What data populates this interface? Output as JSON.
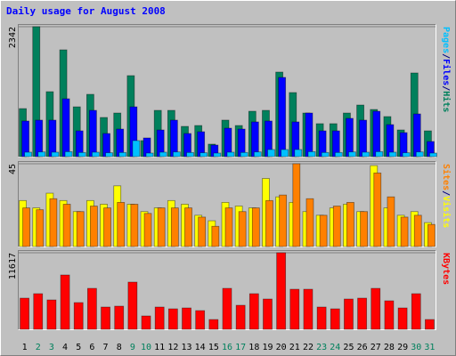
{
  "chart_data": [
    {
      "type": "bar",
      "title": "Daily usage for August 2008",
      "separator": "/",
      "ylim": [
        0,
        2342
      ],
      "yticks": [
        2342
      ],
      "series": [
        {
          "name": "Hits",
          "color": "#00805c",
          "values": [
            866,
            2342,
            1171,
            1925,
            898,
            1123,
            706,
            786,
            1460,
            289,
            834,
            834,
            545,
            561,
            225,
            658,
            561,
            818,
            834,
            1524,
            1155,
            786,
            594,
            594,
            786,
            930,
            850,
            722,
            481,
            1508,
            465
          ]
        },
        {
          "name": "Files",
          "color": "#0000ff",
          "values": [
            642,
            658,
            658,
            1043,
            465,
            834,
            417,
            497,
            898,
            337,
            481,
            658,
            417,
            449,
            209,
            513,
            497,
            626,
            642,
            1428,
            626,
            786,
            465,
            465,
            690,
            658,
            818,
            577,
            433,
            770,
            273
          ]
        },
        {
          "name": "Pages",
          "color": "#00c0ff",
          "values": [
            80,
            85,
            80,
            90,
            75,
            80,
            70,
            75,
            289,
            64,
            80,
            85,
            75,
            70,
            64,
            80,
            75,
            85,
            128,
            128,
            128,
            90,
            75,
            75,
            85,
            80,
            90,
            80,
            70,
            85,
            64
          ]
        }
      ]
    },
    {
      "type": "bar",
      "separator": "/",
      "ylim": [
        0,
        45
      ],
      "yticks": [
        45
      ],
      "series": [
        {
          "name": "Visits",
          "color": "#ffff00",
          "values": [
            25,
            21,
            29,
            25,
            19,
            25,
            23,
            33,
            23,
            19,
            21,
            25,
            23,
            17,
            14,
            24,
            22,
            21,
            37,
            27,
            24,
            19,
            17,
            21,
            23,
            19,
            44,
            21,
            17,
            19,
            13
          ]
        },
        {
          "name": "Sites",
          "color": "#ff8000",
          "values": [
            21,
            20,
            26,
            23,
            19,
            22,
            21,
            24,
            23,
            18,
            21,
            21,
            21,
            16,
            11,
            21,
            19,
            21,
            25,
            28,
            45,
            26,
            17,
            22,
            24,
            19,
            40,
            27,
            16,
            17,
            12
          ]
        }
      ]
    },
    {
      "type": "bar",
      "ylim": [
        0,
        11617
      ],
      "yticks": [
        11617
      ],
      "series": [
        {
          "name": "KBytes",
          "color": "#ff0000",
          "values": [
            4728,
            5404,
            4458,
            8241,
            4053,
            6214,
            3377,
            3512,
            7160,
            2026,
            3377,
            3107,
            3242,
            2837,
            1486,
            6214,
            3647,
            5404,
            4593,
            11617,
            6079,
            6079,
            3377,
            3107,
            4593,
            4728,
            6214,
            4323,
            3242,
            5404,
            1486
          ]
        }
      ],
      "categories": [
        "1",
        "2",
        "3",
        "4",
        "5",
        "6",
        "7",
        "8",
        "9",
        "10",
        "11",
        "12",
        "13",
        "14",
        "15",
        "16",
        "17",
        "18",
        "19",
        "20",
        "21",
        "22",
        "23",
        "24",
        "25",
        "26",
        "27",
        "28",
        "29",
        "30",
        "31"
      ],
      "category_colors": [
        "#000000",
        "#00805c",
        "#00805c",
        "#000000",
        "#000000",
        "#000000",
        "#000000",
        "#000000",
        "#00805c",
        "#00805c",
        "#000000",
        "#000000",
        "#000000",
        "#000000",
        "#000000",
        "#00805c",
        "#00805c",
        "#000000",
        "#000000",
        "#000000",
        "#000000",
        "#000000",
        "#00805c",
        "#00805c",
        "#000000",
        "#000000",
        "#000000",
        "#000000",
        "#000000",
        "#00805c",
        "#00805c"
      ]
    }
  ]
}
